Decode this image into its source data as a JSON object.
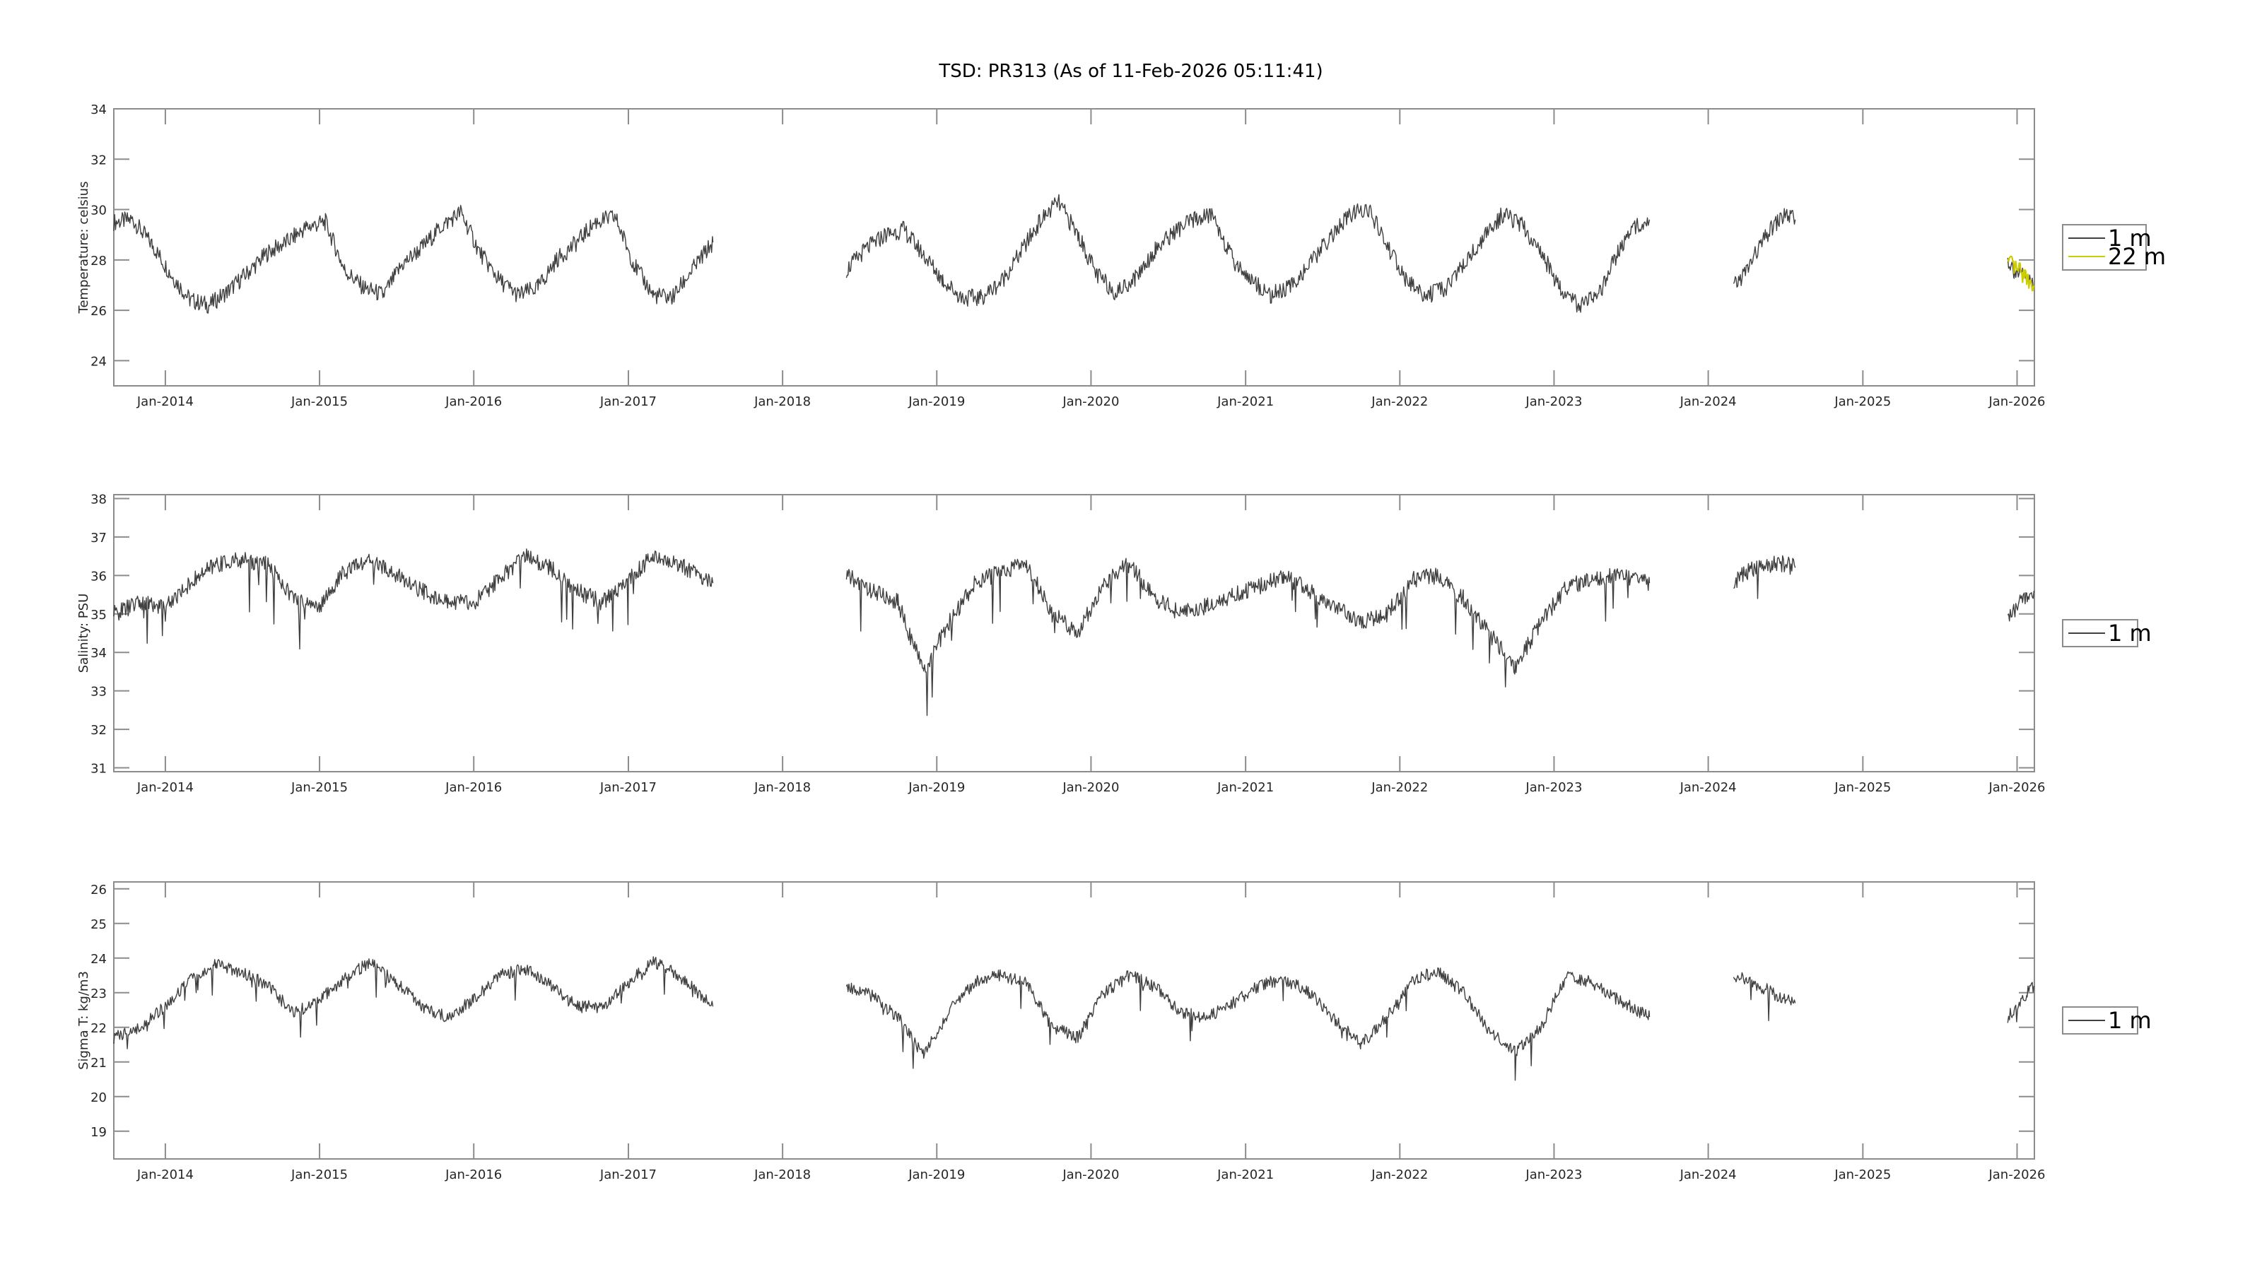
{
  "title": "TSD: PR313 (As of 11-Feb-2026 05:11:41)",
  "x_tick_labels": [
    "Jan-2014",
    "Jan-2015",
    "Jan-2016",
    "Jan-2017",
    "Jan-2018",
    "Jan-2019",
    "Jan-2020",
    "Jan-2021",
    "Jan-2022",
    "Jan-2023",
    "Jan-2024",
    "Jan-2025",
    "Jan-2026"
  ],
  "colors": {
    "series_1m": "#404040",
    "series_22m": "#cccc00",
    "axis": "#8c8c8c",
    "text": "#262626"
  },
  "chart_data": [
    {
      "type": "line",
      "ylabel": "Temperature:  celsius",
      "xlim": [
        "2013-09-01",
        "2026-02-11"
      ],
      "ylim": [
        23,
        34
      ],
      "yticks": [
        24,
        26,
        28,
        30,
        32,
        34
      ],
      "legend_placement": "outside-right",
      "series": [
        {
          "name": "1 m",
          "color": "#404040",
          "segments": [
            {
              "x": [
                "2013-09-01",
                "2013-10-15",
                "2013-12-01",
                "2014-01-15",
                "2014-03-01",
                "2014-04-15",
                "2014-06-01",
                "2014-07-15",
                "2014-09-01",
                "2014-10-15",
                "2014-12-01",
                "2015-01-15",
                "2015-03-01",
                "2015-04-15",
                "2015-06-01",
                "2015-07-15",
                "2015-09-01",
                "2015-10-15",
                "2015-12-01",
                "2016-01-15",
                "2016-03-01",
                "2016-04-15",
                "2016-06-01",
                "2016-07-15",
                "2016-09-01",
                "2016-10-15",
                "2016-12-01",
                "2017-01-15",
                "2017-03-01",
                "2017-04-15",
                "2017-06-01",
                "2017-07-20"
              ],
              "y": [
                29.5,
                29.6,
                28.6,
                27.4,
                26.4,
                26.2,
                26.8,
                27.5,
                28.3,
                28.7,
                29.3,
                29.5,
                27.6,
                26.9,
                26.6,
                27.8,
                28.5,
                29.3,
                29.9,
                28.3,
                27.2,
                26.6,
                26.9,
                28.0,
                28.7,
                29.5,
                29.7,
                27.8,
                26.6,
                26.5,
                27.6,
                28.7
              ]
            },
            {
              "x": [
                "2018-06-01",
                "2018-07-15",
                "2018-09-01",
                "2018-10-15",
                "2018-12-01",
                "2019-01-15",
                "2019-03-01",
                "2019-04-15",
                "2019-06-01",
                "2019-07-15",
                "2019-09-01",
                "2019-10-15",
                "2019-12-01",
                "2020-01-15",
                "2020-03-01",
                "2020-04-15",
                "2020-06-01",
                "2020-07-15",
                "2020-09-01",
                "2020-10-15",
                "2020-12-01",
                "2021-01-15",
                "2021-03-01",
                "2021-04-15",
                "2021-06-01",
                "2021-07-15",
                "2021-09-01",
                "2021-10-15",
                "2021-12-01",
                "2022-01-15",
                "2022-03-01",
                "2022-04-15",
                "2022-06-01",
                "2022-07-15",
                "2022-09-01",
                "2022-10-15",
                "2022-12-01",
                "2023-01-15",
                "2023-03-01",
                "2023-04-15",
                "2023-06-01",
                "2023-07-15",
                "2023-08-15"
              ],
              "y": [
                27.6,
                28.4,
                29.0,
                29.2,
                28.2,
                27.2,
                26.5,
                26.5,
                27.1,
                28.2,
                29.5,
                30.3,
                29.0,
                27.4,
                26.7,
                27.3,
                28.4,
                29.1,
                29.6,
                29.8,
                28.0,
                27.2,
                26.6,
                26.9,
                27.8,
                28.8,
                29.7,
                30.1,
                28.6,
                27.2,
                26.6,
                26.8,
                27.8,
                28.8,
                29.8,
                29.4,
                28.3,
                26.9,
                26.2,
                26.5,
                28.3,
                29.4,
                29.6
              ]
            },
            {
              "x": [
                "2024-03-01",
                "2024-04-01",
                "2024-05-01",
                "2024-06-01",
                "2024-07-01",
                "2024-07-25"
              ],
              "y": [
                26.9,
                27.6,
                28.5,
                29.3,
                29.8,
                29.6
              ]
            },
            {
              "x": [
                "2025-12-10",
                "2025-12-25",
                "2026-01-10",
                "2026-01-25",
                "2026-02-10"
              ],
              "y": [
                28.0,
                27.6,
                27.4,
                27.2,
                27.0
              ]
            }
          ]
        },
        {
          "name": "22 m",
          "color": "#cccc00",
          "segments": [
            {
              "x": [
                "2025-12-10",
                "2025-12-25",
                "2026-01-10",
                "2026-01-25",
                "2026-02-10"
              ],
              "y": [
                27.9,
                27.7,
                27.5,
                27.3,
                27.0
              ]
            }
          ]
        }
      ]
    },
    {
      "type": "line",
      "ylabel": "Salinity:  PSU",
      "xlim": [
        "2013-09-01",
        "2026-02-11"
      ],
      "ylim": [
        30.9,
        38.1
      ],
      "yticks": [
        31,
        32,
        33,
        34,
        35,
        36,
        37,
        38
      ],
      "legend_placement": "outside-right",
      "series": [
        {
          "name": "1 m",
          "color": "#404040",
          "segments": [
            {
              "x": [
                "2013-09-01",
                "2013-11-01",
                "2014-01-01",
                "2014-03-01",
                "2014-05-01",
                "2014-07-01",
                "2014-09-01",
                "2014-11-01",
                "2015-01-01",
                "2015-03-01",
                "2015-05-01",
                "2015-07-01",
                "2015-09-01",
                "2015-11-01",
                "2016-01-01",
                "2016-03-01",
                "2016-05-01",
                "2016-07-01",
                "2016-09-01",
                "2016-11-01",
                "2017-01-01",
                "2017-03-01",
                "2017-05-01",
                "2017-07-20"
              ],
              "y": [
                35.0,
                35.3,
                35.2,
                35.8,
                36.3,
                36.4,
                36.3,
                35.4,
                35.2,
                36.1,
                36.4,
                36.0,
                35.6,
                35.3,
                35.3,
                35.9,
                36.5,
                36.2,
                35.6,
                35.3,
                35.9,
                36.5,
                36.3,
                35.8
              ]
            },
            {
              "x": [
                "2018-06-01",
                "2018-08-01",
                "2018-10-01",
                "2018-12-01",
                "2019-02-01",
                "2019-04-01",
                "2019-06-01",
                "2019-08-01",
                "2019-10-01",
                "2019-12-01",
                "2020-02-01",
                "2020-04-01",
                "2020-06-01",
                "2020-08-01",
                "2020-10-01",
                "2020-12-01",
                "2021-02-01",
                "2021-04-01",
                "2021-06-01",
                "2021-08-01",
                "2021-10-01",
                "2021-12-01",
                "2022-02-01",
                "2022-04-01",
                "2022-06-01",
                "2022-08-01",
                "2022-10-01",
                "2022-12-01",
                "2023-02-01",
                "2023-04-01",
                "2023-06-01",
                "2023-08-15"
              ],
              "y": [
                36.0,
                35.6,
                35.3,
                33.5,
                34.8,
                35.8,
                36.1,
                36.3,
                35.0,
                34.5,
                35.8,
                36.3,
                35.4,
                35.0,
                35.2,
                35.5,
                35.7,
                36.0,
                35.6,
                35.2,
                34.8,
                35.0,
                35.9,
                36.0,
                35.4,
                34.5,
                33.6,
                34.8,
                35.7,
                35.9,
                36.0,
                35.8
              ]
            },
            {
              "x": [
                "2024-03-01",
                "2024-04-01",
                "2024-05-01",
                "2024-06-01",
                "2024-07-01",
                "2024-07-25"
              ],
              "y": [
                35.8,
                36.1,
                36.2,
                36.3,
                36.3,
                36.2
              ]
            },
            {
              "x": [
                "2025-12-10",
                "2025-12-25",
                "2026-01-10",
                "2026-01-25",
                "2026-02-10"
              ],
              "y": [
                34.9,
                35.1,
                35.3,
                35.4,
                35.6
              ]
            }
          ]
        }
      ]
    },
    {
      "type": "line",
      "ylabel": "Sigma T:  kg/m3",
      "xlim": [
        "2013-09-01",
        "2026-02-11"
      ],
      "ylim": [
        18.2,
        26.2
      ],
      "yticks": [
        19,
        20,
        21,
        22,
        23,
        24,
        25,
        26
      ],
      "legend_placement": "outside-right",
      "series": [
        {
          "name": "1 m",
          "color": "#404040",
          "segments": [
            {
              "x": [
                "2013-09-01",
                "2013-11-01",
                "2014-01-01",
                "2014-03-01",
                "2014-05-01",
                "2014-07-01",
                "2014-09-01",
                "2014-11-01",
                "2015-01-01",
                "2015-03-01",
                "2015-05-01",
                "2015-07-01",
                "2015-09-01",
                "2015-11-01",
                "2016-01-01",
                "2016-03-01",
                "2016-05-01",
                "2016-07-01",
                "2016-09-01",
                "2016-11-01",
                "2017-01-01",
                "2017-03-01",
                "2017-05-01",
                "2017-07-20"
              ],
              "y": [
                21.7,
                22.0,
                22.6,
                23.4,
                23.8,
                23.6,
                23.2,
                22.4,
                22.8,
                23.4,
                23.9,
                23.3,
                22.6,
                22.3,
                22.8,
                23.5,
                23.7,
                23.2,
                22.6,
                22.6,
                23.3,
                23.9,
                23.5,
                22.6
              ]
            },
            {
              "x": [
                "2018-06-01",
                "2018-08-01",
                "2018-10-01",
                "2018-12-01",
                "2019-02-01",
                "2019-04-01",
                "2019-06-01",
                "2019-08-01",
                "2019-10-01",
                "2019-12-01",
                "2020-02-01",
                "2020-04-01",
                "2020-06-01",
                "2020-08-01",
                "2020-10-01",
                "2020-12-01",
                "2021-02-01",
                "2021-04-01",
                "2021-06-01",
                "2021-08-01",
                "2021-10-01",
                "2021-12-01",
                "2022-02-01",
                "2022-04-01",
                "2022-06-01",
                "2022-08-01",
                "2022-10-01",
                "2022-12-01",
                "2023-02-01",
                "2023-04-01",
                "2023-06-01",
                "2023-08-15"
              ],
              "y": [
                23.2,
                22.9,
                22.3,
                21.2,
                22.5,
                23.3,
                23.5,
                23.3,
                22.0,
                21.7,
                23.0,
                23.5,
                23.2,
                22.4,
                22.3,
                22.7,
                23.2,
                23.4,
                23.0,
                22.2,
                21.5,
                22.3,
                23.4,
                23.6,
                23.0,
                21.9,
                21.3,
                22.0,
                23.5,
                23.3,
                22.8,
                22.3
              ]
            },
            {
              "x": [
                "2024-03-01",
                "2024-04-01",
                "2024-05-01",
                "2024-06-01",
                "2024-07-01",
                "2024-07-25"
              ],
              "y": [
                23.5,
                23.4,
                23.2,
                23.0,
                22.8,
                22.7
              ]
            },
            {
              "x": [
                "2025-12-10",
                "2025-12-25",
                "2026-01-10",
                "2026-01-25",
                "2026-02-10"
              ],
              "y": [
                22.3,
                22.5,
                22.8,
                23.0,
                23.2
              ]
            }
          ]
        }
      ]
    }
  ]
}
